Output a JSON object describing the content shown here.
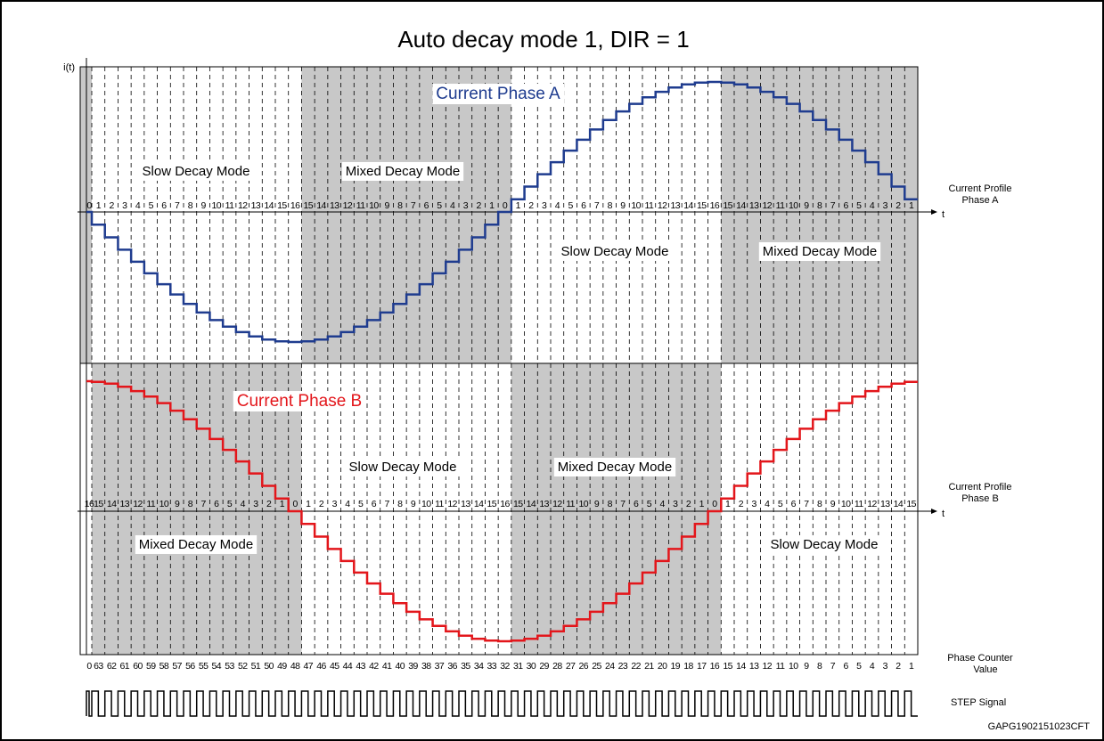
{
  "title": "Auto decay mode 1, DIR = 1",
  "y_axis_label": "i(t)",
  "phase_a": {
    "name": "Current Phase A",
    "axis_label": "t",
    "profile_label": [
      "Current Profile",
      "Phase A"
    ],
    "step_labels": [
      0,
      1,
      2,
      3,
      4,
      5,
      6,
      7,
      8,
      9,
      10,
      11,
      12,
      13,
      14,
      15,
      16,
      15,
      14,
      13,
      12,
      11,
      10,
      9,
      8,
      7,
      6,
      5,
      4,
      3,
      2,
      1,
      0,
      1,
      2,
      3,
      4,
      5,
      6,
      7,
      8,
      9,
      10,
      11,
      12,
      13,
      14,
      15,
      16,
      15,
      14,
      13,
      12,
      11,
      10,
      9,
      8,
      7,
      6,
      5,
      4,
      3,
      2,
      1
    ],
    "regions": [
      "Slow Decay Mode",
      "Mixed Decay Mode",
      "Slow Decay Mode",
      "Mixed Decay Mode"
    ]
  },
  "phase_b": {
    "name": "Current Phase B",
    "axis_label": "t",
    "profile_label": [
      "Current Profile",
      "Phase B"
    ],
    "step_labels": [
      16,
      15,
      14,
      13,
      12,
      11,
      10,
      9,
      8,
      7,
      6,
      5,
      4,
      3,
      2,
      1,
      0,
      1,
      2,
      3,
      4,
      5,
      6,
      7,
      8,
      9,
      10,
      11,
      12,
      13,
      14,
      15,
      16,
      15,
      14,
      13,
      12,
      11,
      10,
      9,
      8,
      7,
      6,
      5,
      4,
      3,
      2,
      1,
      0,
      1,
      2,
      3,
      4,
      5,
      6,
      7,
      8,
      9,
      10,
      11,
      12,
      13,
      14,
      15
    ],
    "regions": [
      "Slow Decay Mode",
      "Mixed Decay Mode",
      "Mixed Decay Mode",
      "Slow Decay Mode"
    ]
  },
  "phase_counter": {
    "label": [
      "Phase Counter",
      "Value"
    ],
    "values": [
      0,
      63,
      62,
      61,
      60,
      59,
      58,
      57,
      56,
      55,
      54,
      53,
      52,
      51,
      50,
      49,
      48,
      47,
      46,
      45,
      44,
      43,
      42,
      41,
      40,
      39,
      38,
      37,
      36,
      35,
      34,
      33,
      32,
      31,
      30,
      29,
      28,
      27,
      26,
      25,
      24,
      23,
      22,
      21,
      20,
      19,
      18,
      17,
      16,
      15,
      14,
      13,
      12,
      11,
      10,
      9,
      8,
      7,
      6,
      5,
      4,
      3,
      2,
      1
    ]
  },
  "step_signal_label": "STEP Signal",
  "figure_id": "GAPG1902151023CFT"
}
